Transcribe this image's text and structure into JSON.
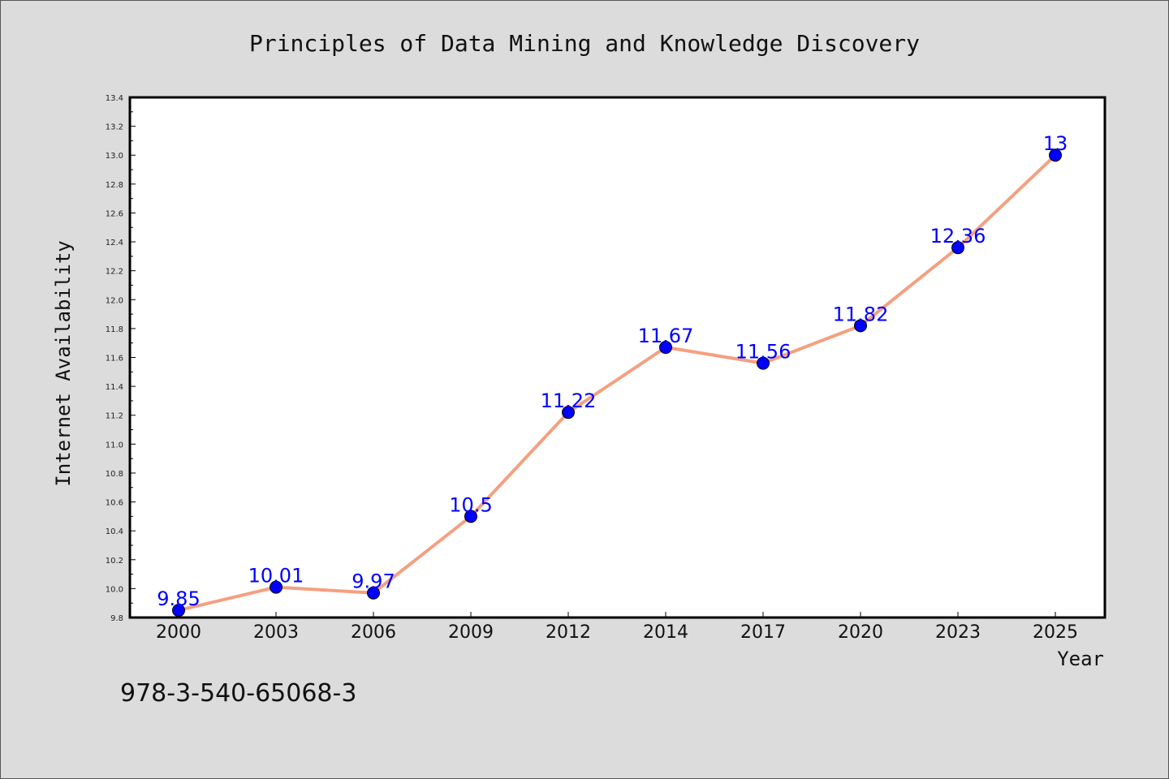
{
  "chart_data": {
    "type": "line",
    "title": "Principles of Data Mining and Knowledge Discovery",
    "xlabel": "Year",
    "ylabel": "Internet Availability",
    "categories": [
      "2000",
      "2003",
      "2006",
      "2009",
      "2012",
      "2014",
      "2017",
      "2020",
      "2023",
      "2025"
    ],
    "series": [
      {
        "values": [
          9.85,
          10.01,
          9.97,
          10.5,
          11.22,
          11.67,
          11.56,
          11.82,
          12.36,
          13.0
        ],
        "labels": [
          "9.85",
          "10.01",
          "9.97",
          "10.5",
          "11.22",
          "11.67",
          "11.56",
          "11.82",
          "12.36",
          "13"
        ]
      }
    ],
    "ylim": [
      9.8,
      13.4
    ],
    "yticks": [
      "9.8",
      "10.0",
      "10.2",
      "10.4",
      "10.6",
      "10.8",
      "11.0",
      "11.2",
      "11.4",
      "11.6",
      "11.8",
      "12.0",
      "12.2",
      "12.4",
      "12.6",
      "12.8",
      "13.0",
      "13.2",
      "13.4"
    ],
    "grid": false,
    "line_color": "#f4a080",
    "marker_color": "#0000ff",
    "label_color": "#0000ff",
    "background_color": "#dcdcdc",
    "plot_background": "#ffffff"
  },
  "annotation": {
    "isbn": "978-3-540-65068-3"
  }
}
